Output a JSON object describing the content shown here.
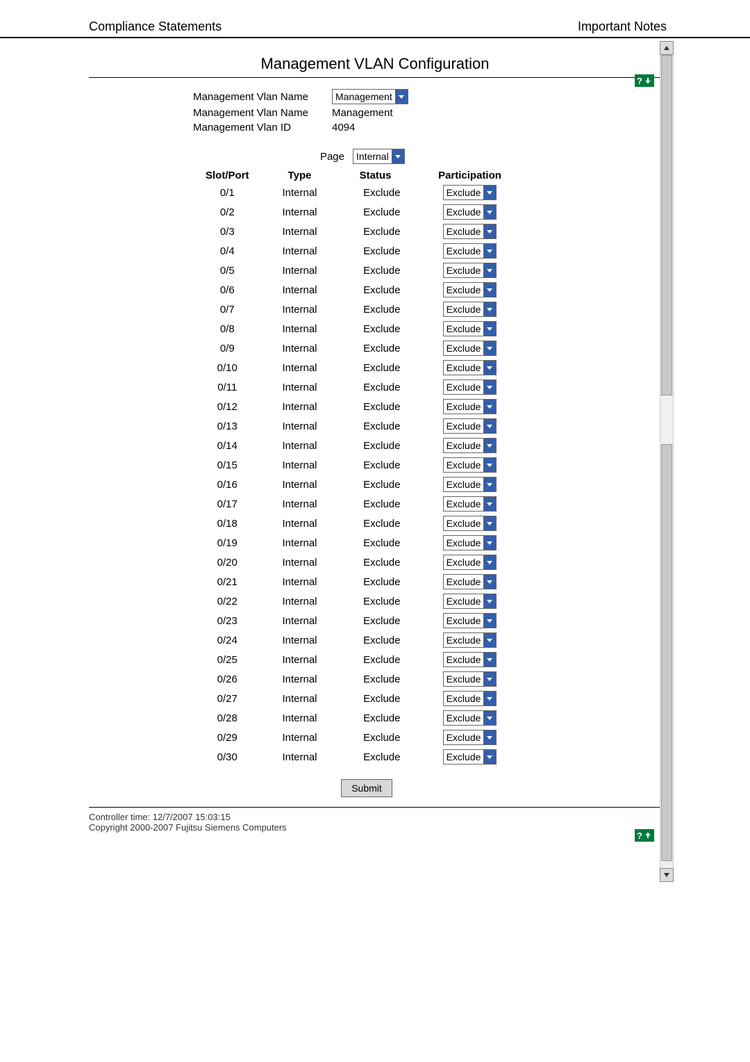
{
  "header": {
    "left": "Compliance Statements",
    "right": "Important Notes"
  },
  "title": "Management VLAN Configuration",
  "help_badge_text": "?",
  "meta": {
    "rows": [
      {
        "label": "Management Vlan Name",
        "dropdown": "Management"
      },
      {
        "label": "Management Vlan Name",
        "text": "Management"
      },
      {
        "label": "Management Vlan ID",
        "text": "4094"
      }
    ]
  },
  "page_selector": {
    "label": "Page",
    "value": "Internal"
  },
  "table": {
    "columns": {
      "slot": "Slot/Port",
      "type": "Type",
      "status": "Status",
      "participation": "Participation"
    },
    "type_value": "Internal",
    "status_value": "Exclude",
    "participation_value": "Exclude",
    "rows": [
      "0/1",
      "0/2",
      "0/3",
      "0/4",
      "0/5",
      "0/6",
      "0/7",
      "0/8",
      "0/9",
      "0/10",
      "0/11",
      "0/12",
      "0/13",
      "0/14",
      "0/15",
      "0/16",
      "0/17",
      "0/18",
      "0/19",
      "0/20",
      "0/21",
      "0/22",
      "0/23",
      "0/24",
      "0/25",
      "0/26",
      "0/27",
      "0/28",
      "0/29",
      "0/30"
    ]
  },
  "buttons": {
    "submit": "Submit"
  },
  "footer": {
    "line1": "Controller time: 12/7/2007 15:03:15",
    "line2": "Copyright 2000-2007 Fujitsu Siemens Computers"
  },
  "colors": {
    "badge_bg": "#007a3d",
    "dropdown_btn_bg": "#355ea8",
    "submit_bg": "#d8d8d8"
  }
}
